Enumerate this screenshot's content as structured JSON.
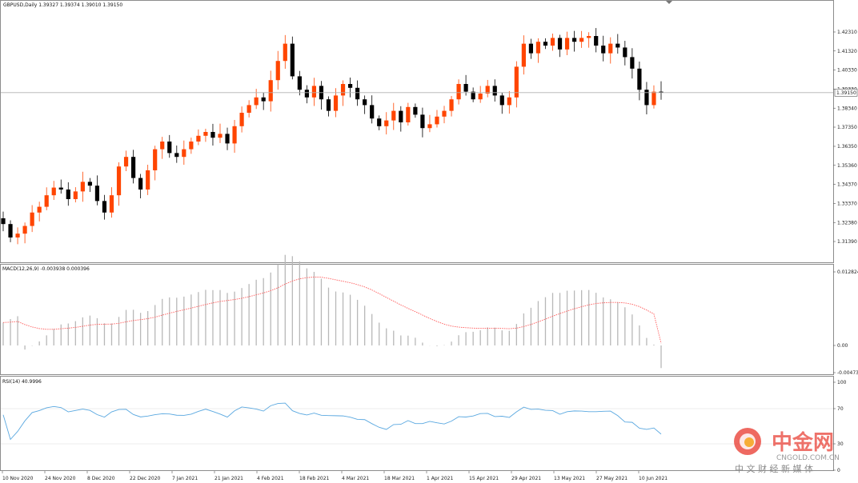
{
  "header": {
    "symbol_line": "GBPUSD,Daily  1.39327 1.39374 1.39010 1.39150"
  },
  "panels": {
    "macd_title": "MACD(12,26,9) -0.003938 0.000396",
    "rsi_title": "RSI(14) 40.9996"
  },
  "price_axis": {
    "labels": [
      "1.42310",
      "1.41320",
      "1.40330",
      "1.39330",
      "1.38340",
      "1.37350",
      "1.36350",
      "1.35360",
      "1.34370",
      "1.33370",
      "1.32380",
      "1.31390"
    ],
    "current_price": "1.39150",
    "ylim": [
      1.3089,
      1.4306
    ]
  },
  "macd_axis": {
    "labels": [
      "0.012824",
      "0.00",
      "-0.004737"
    ],
    "ylim": [
      -0.004737,
      0.012824
    ]
  },
  "rsi_axis": {
    "labels": [
      "100",
      "70",
      "30",
      "0"
    ],
    "ylim": [
      0,
      100
    ]
  },
  "date_axis": {
    "labels": [
      "10 Nov 2020",
      "24 Nov 2020",
      "8 Dec 2020",
      "22 Dec 2020",
      "7 Jan 2021",
      "21 Jan 2021",
      "4 Feb 2021",
      "18 Feb 2021",
      "4 Mar 2021",
      "18 Mar 2021",
      "1 Apr 2021",
      "15 Apr 2021",
      "29 Apr 2021",
      "13 May 2021",
      "27 May 2021",
      "10 Jun 2021"
    ]
  },
  "watermark": {
    "brand_cn": "中金网",
    "brand_en": "CNGOLD.COM.CN",
    "tagline": "中 文 财 经 新 媒 体"
  },
  "colors": {
    "bull": "#ff4500",
    "bear": "#000000",
    "macd_hist": "#b8b8b8",
    "macd_signal": "#ff5a5a",
    "rsi_line": "#5aa8e0",
    "grid_border": "#8c8c8c",
    "brand": "#e8372c"
  },
  "chart_data": [
    {
      "type": "candlestick",
      "title": "GBPUSD,Daily",
      "ylim": [
        1.3089,
        1.4306
      ],
      "x": [
        "10 Nov 2020",
        "24 Nov 2020",
        "8 Dec 2020",
        "22 Dec 2020",
        "7 Jan 2021",
        "21 Jan 2021",
        "4 Feb 2021",
        "18 Feb 2021",
        "4 Mar 2021",
        "18 Mar 2021",
        "1 Apr 2021",
        "15 Apr 2021",
        "29 Apr 2021",
        "13 May 2021",
        "27 May 2021",
        "10 Jun 2021"
      ],
      "close_path": [
        1.323,
        1.316,
        1.318,
        1.322,
        1.329,
        1.332,
        1.338,
        1.342,
        1.341,
        1.336,
        1.34,
        1.345,
        1.343,
        1.335,
        1.329,
        1.338,
        1.353,
        1.358,
        1.347,
        1.341,
        1.351,
        1.362,
        1.366,
        1.36,
        1.358,
        1.362,
        1.366,
        1.369,
        1.371,
        1.368,
        1.37,
        1.365,
        1.374,
        1.381,
        1.385,
        1.389,
        1.387,
        1.398,
        1.408,
        1.417,
        1.4,
        1.393,
        1.389,
        1.395,
        1.388,
        1.382,
        1.39,
        1.396,
        1.394,
        1.388,
        1.385,
        1.378,
        1.374,
        1.377,
        1.382,
        1.376,
        1.384,
        1.38,
        1.373,
        1.375,
        1.379,
        1.382,
        1.388,
        1.396,
        1.392,
        1.388,
        1.391,
        1.395,
        1.39,
        1.385,
        1.389,
        1.405,
        1.417,
        1.412,
        1.418,
        1.416,
        1.42,
        1.414,
        1.42,
        1.418,
        1.42,
        1.421,
        1.416,
        1.412,
        1.417,
        1.415,
        1.41,
        1.404,
        1.393,
        1.385,
        1.392,
        1.3915
      ],
      "current": 1.3915
    },
    {
      "type": "bar",
      "title": "MACD(12,26,9)",
      "main_value": -0.003938,
      "signal_value": 0.000396,
      "ylim": [
        -0.004737,
        0.012824
      ]
    },
    {
      "type": "line",
      "title": "RSI(14)",
      "last_value": 40.9996,
      "ylim": [
        0,
        100
      ],
      "levels": [
        70,
        30
      ]
    }
  ]
}
